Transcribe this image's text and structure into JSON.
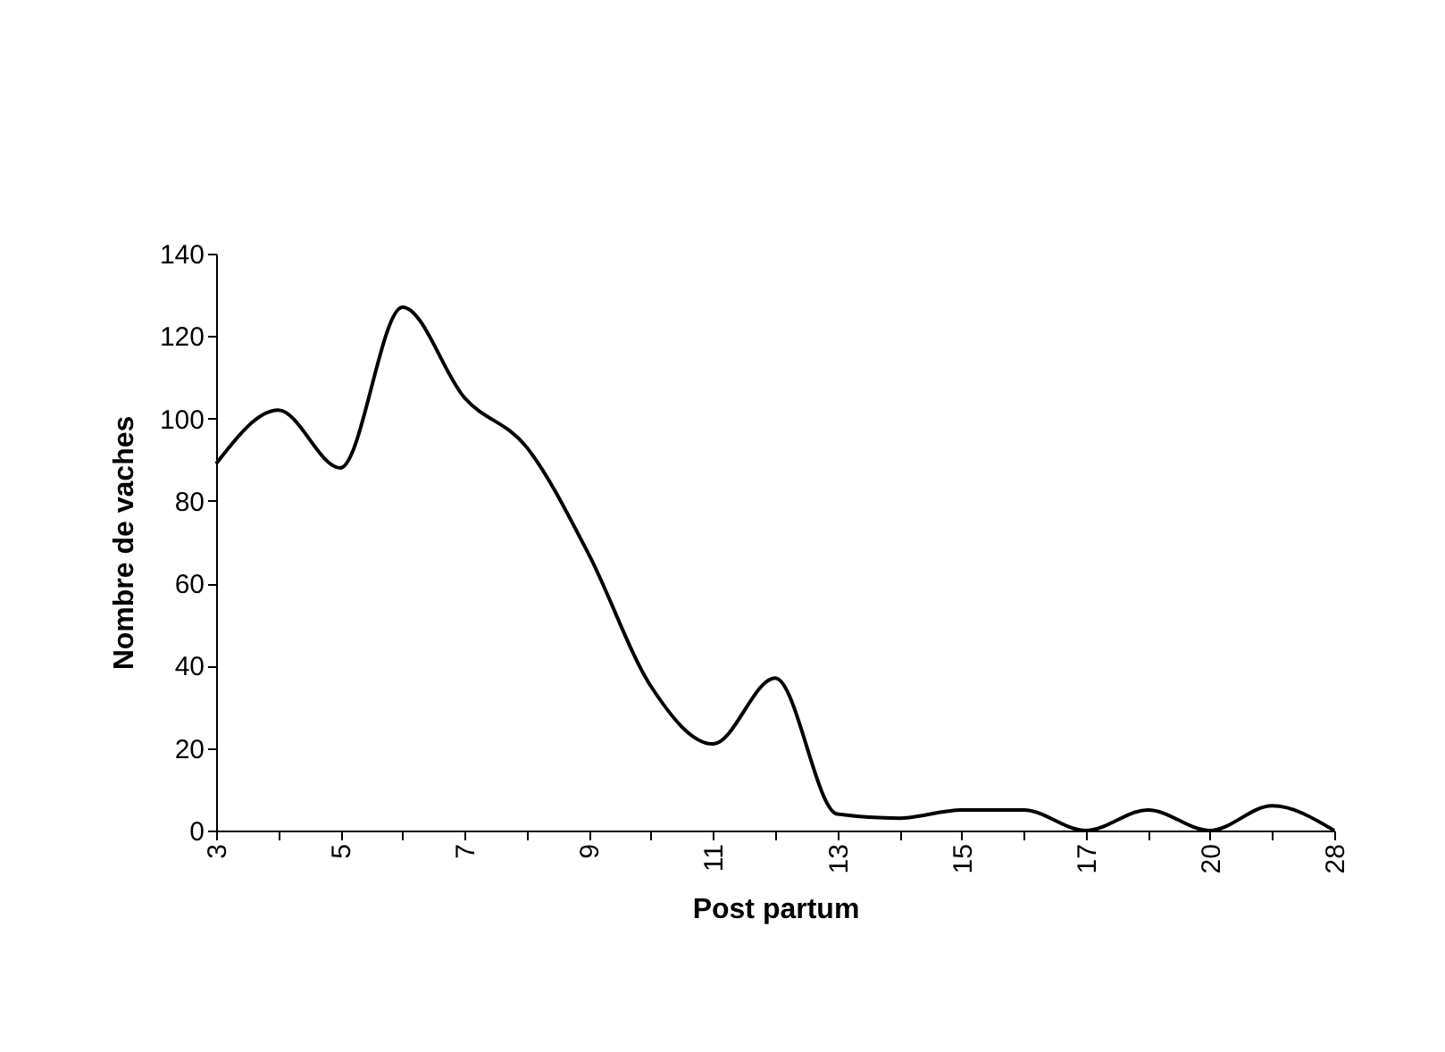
{
  "chart_data": {
    "type": "line",
    "xlabel": "Post partum",
    "ylabel": "Nombre de vaches",
    "categories": [
      "3",
      null,
      "5",
      null,
      "7",
      null,
      "9",
      null,
      "11",
      null,
      "13",
      null,
      "15",
      null,
      "17",
      null,
      "20",
      null,
      "28"
    ],
    "values": [
      89,
      102,
      88,
      127,
      105,
      93,
      67,
      35,
      21,
      37,
      4,
      3,
      5,
      5,
      0,
      5,
      0,
      6,
      0
    ],
    "color": "#000000",
    "ylim": [
      0,
      140
    ],
    "yticks": [
      0,
      20,
      40,
      60,
      80,
      100,
      120,
      140
    ],
    "grid": false,
    "marker": "none",
    "line_style": "solid"
  }
}
